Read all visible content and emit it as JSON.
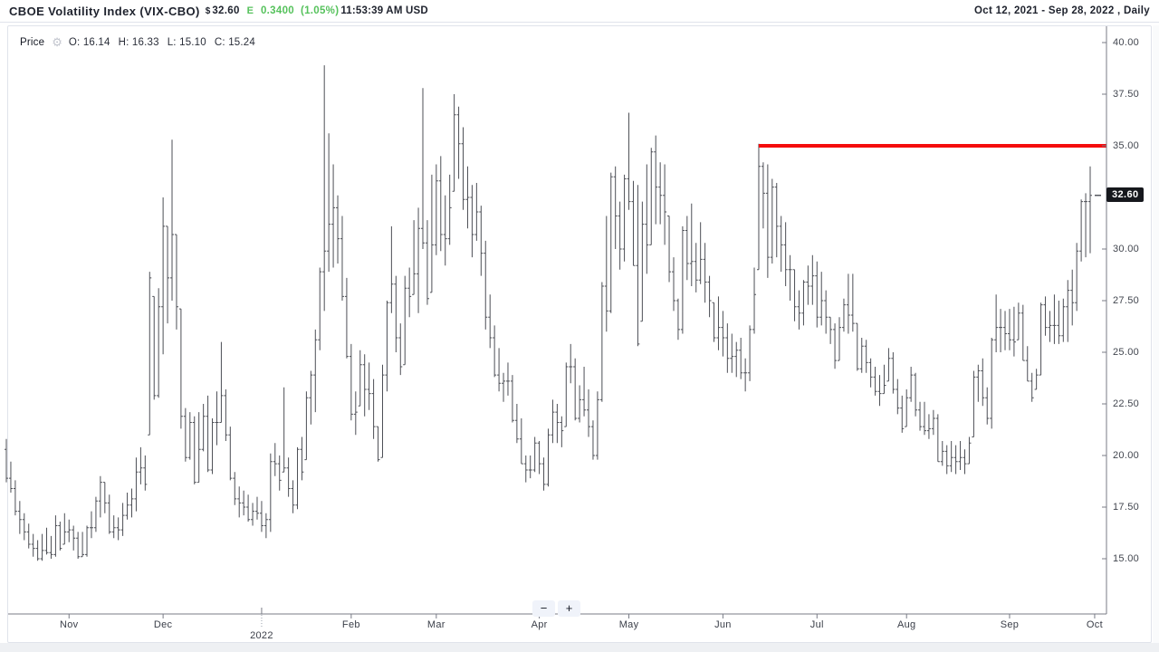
{
  "header": {
    "title": "CBOE Volatility Index (VIX-CBO)",
    "currency_symbol": "$",
    "last_price": "32.60",
    "session_flag": "E",
    "change": "0.3400",
    "change_pct": "(1.05%)",
    "time": "11:53:39 AM USD",
    "range": "Oct 12, 2021 - Sep 28, 2022 , Daily"
  },
  "legend": {
    "series": "Price",
    "gear_icon": "gear",
    "items": [
      {
        "k": "O:",
        "v": "16.14"
      },
      {
        "k": "H:",
        "v": "16.33"
      },
      {
        "k": "L:",
        "v": "15.10"
      },
      {
        "k": "C:",
        "v": "15.24"
      }
    ]
  },
  "toolbar": {
    "zoom_out": "−",
    "zoom_in": "+"
  },
  "price_tag": "32.60",
  "colors": {
    "bar": "#4d4f56",
    "red_line": "#f50d0d",
    "green": "#56c25c",
    "axis": "#787b86",
    "price_tag_bg": "#16181d"
  },
  "chart_data": {
    "type": "bar",
    "subtype": "ohlc-bars-daily",
    "title": "CBOE Volatility Index (VIX-CBO)",
    "date_range": "Oct 12, 2021 - Sep 28, 2022",
    "interval": "Daily",
    "ylim": [
      13.9,
      41.0
    ],
    "grid": false,
    "y_ticks": [
      {
        "label": "40.00",
        "value": 40.0
      },
      {
        "label": "37.50",
        "value": 37.5
      },
      {
        "label": "35.00",
        "value": 35.0
      },
      {
        "label": "30.00",
        "value": 30.0
      },
      {
        "label": "27.50",
        "value": 27.5
      },
      {
        "label": "25.00",
        "value": 25.0
      },
      {
        "label": "22.50",
        "value": 22.5
      },
      {
        "label": "20.00",
        "value": 20.0
      },
      {
        "label": "17.50",
        "value": 17.5
      },
      {
        "label": "15.00",
        "value": 15.0
      }
    ],
    "x_ticks": [
      {
        "label": "Nov",
        "index": 14,
        "year": false
      },
      {
        "label": "Dec",
        "index": 35,
        "year": false
      },
      {
        "label": "2022",
        "index": 57,
        "year": true
      },
      {
        "label": "Feb",
        "index": 77,
        "year": false
      },
      {
        "label": "Mar",
        "index": 96,
        "year": false
      },
      {
        "label": "Apr",
        "index": 119,
        "year": false
      },
      {
        "label": "May",
        "index": 139,
        "year": false
      },
      {
        "label": "Jun",
        "index": 160,
        "year": false
      },
      {
        "label": "Jul",
        "index": 181,
        "year": false
      },
      {
        "label": "Aug",
        "index": 201,
        "year": false
      },
      {
        "label": "Sep",
        "index": 224,
        "year": false
      },
      {
        "label": "Oct",
        "index": 243,
        "year": false
      }
    ],
    "horizontal_line": {
      "price": 35.0,
      "start_index": 168,
      "color": "#f50d0d"
    },
    "current_price": 32.6,
    "first_open": 20.3,
    "bars_hlc": [
      [
        20.8,
        18.7,
        18.9
      ],
      [
        19.7,
        18.2,
        18.4
      ],
      [
        18.8,
        17.1,
        17.3
      ],
      [
        17.8,
        16.2,
        16.9
      ],
      [
        17.2,
        15.9,
        16.3
      ],
      [
        16.7,
        15.5,
        15.7
      ],
      [
        16.2,
        15.1,
        15.5
      ],
      [
        15.9,
        14.9,
        15.0
      ],
      [
        16.2,
        14.9,
        15.4
      ],
      [
        16.5,
        15.2,
        15.3
      ],
      [
        16.1,
        15.0,
        15.2
      ],
      [
        17.1,
        15.1,
        16.6
      ],
      [
        16.8,
        15.4,
        15.5
      ],
      [
        17.2,
        15.7,
        16.3
      ],
      [
        16.9,
        15.8,
        16.4
      ],
      [
        16.6,
        15.4,
        16.0
      ],
      [
        16.3,
        15.0,
        15.1
      ],
      [
        16.3,
        15.1,
        15.2
      ],
      [
        16.6,
        15.1,
        16.5
      ],
      [
        17.3,
        16.0,
        16.5
      ],
      [
        18.0,
        16.3,
        17.8
      ],
      [
        19.0,
        17.0,
        18.7
      ],
      [
        18.7,
        17.2,
        17.7
      ],
      [
        18.1,
        16.2,
        16.3
      ],
      [
        17.1,
        16.0,
        16.5
      ],
      [
        17.0,
        15.9,
        16.4
      ],
      [
        17.7,
        16.1,
        17.1
      ],
      [
        18.2,
        16.9,
        17.6
      ],
      [
        18.4,
        17.0,
        17.9
      ],
      [
        19.9,
        17.3,
        19.2
      ],
      [
        20.4,
        18.6,
        19.4
      ],
      [
        20.0,
        18.3,
        18.6
      ],
      [
        28.9,
        21.0,
        28.6
      ],
      [
        27.7,
        22.7,
        22.9
      ],
      [
        28.1,
        22.8,
        27.2
      ],
      [
        32.5,
        24.9,
        31.1
      ],
      [
        31.1,
        26.4,
        28.6
      ],
      [
        35.3,
        27.5,
        30.7
      ],
      [
        30.7,
        26.1,
        27.2
      ],
      [
        27.1,
        21.3,
        21.9
      ],
      [
        22.3,
        19.7,
        19.9
      ],
      [
        22.1,
        19.8,
        21.6
      ],
      [
        21.9,
        18.6,
        18.7
      ],
      [
        22.1,
        18.7,
        20.3
      ],
      [
        22.5,
        20.2,
        21.9
      ],
      [
        22.9,
        19.2,
        19.3
      ],
      [
        21.8,
        19.1,
        21.6
      ],
      [
        23.1,
        20.5,
        21.6
      ],
      [
        25.5,
        21.6,
        22.9
      ],
      [
        23.2,
        20.7,
        21.0
      ],
      [
        21.4,
        18.8,
        18.9
      ],
      [
        19.2,
        17.6,
        17.9
      ],
      [
        18.5,
        17.0,
        17.7
      ],
      [
        18.3,
        17.1,
        17.5
      ],
      [
        18.1,
        16.8,
        16.9
      ],
      [
        17.7,
        16.6,
        17.3
      ],
      [
        18.0,
        16.9,
        17.2
      ],
      [
        17.8,
        16.3,
        16.6
      ],
      [
        17.2,
        16.0,
        16.9
      ],
      [
        20.1,
        16.3,
        19.7
      ],
      [
        20.6,
        19.0,
        19.6
      ],
      [
        20.0,
        18.3,
        18.8
      ],
      [
        23.3,
        19.2,
        19.4
      ],
      [
        19.9,
        18.0,
        18.4
      ],
      [
        18.8,
        17.2,
        17.6
      ],
      [
        20.4,
        17.4,
        20.3
      ],
      [
        20.9,
        18.8,
        19.2
      ],
      [
        23.1,
        19.8,
        22.8
      ],
      [
        24.1,
        21.5,
        23.9
      ],
      [
        26.1,
        22.1,
        25.6
      ],
      [
        29.1,
        25.1,
        28.9
      ],
      [
        38.9,
        27.0,
        29.9
      ],
      [
        35.6,
        28.9,
        31.2
      ],
      [
        34.1,
        29.1,
        32.0
      ],
      [
        32.6,
        29.3,
        30.5
      ],
      [
        31.6,
        27.5,
        27.7
      ],
      [
        28.6,
        24.7,
        24.8
      ],
      [
        25.4,
        21.7,
        22.0
      ],
      [
        23.1,
        21.0,
        22.1
      ],
      [
        25.1,
        22.4,
        24.4
      ],
      [
        24.9,
        21.9,
        23.2
      ],
      [
        24.5,
        22.2,
        23.0
      ],
      [
        23.7,
        20.8,
        21.4
      ],
      [
        21.4,
        19.7,
        19.8
      ],
      [
        24.4,
        19.9,
        23.9
      ],
      [
        27.5,
        23.1,
        27.4
      ],
      [
        31.1,
        26.9,
        28.3
      ],
      [
        28.7,
        25.0,
        25.7
      ],
      [
        26.4,
        23.9,
        24.3
      ],
      [
        28.7,
        24.4,
        28.1
      ],
      [
        29.1,
        26.7,
        27.7
      ],
      [
        31.4,
        27.8,
        28.8
      ],
      [
        32.0,
        26.9,
        31.0
      ],
      [
        37.8,
        30.0,
        30.3
      ],
      [
        31.4,
        27.3,
        27.6
      ],
      [
        33.6,
        27.9,
        30.2
      ],
      [
        34.1,
        29.7,
        33.3
      ],
      [
        34.5,
        29.9,
        30.7
      ],
      [
        32.6,
        29.2,
        30.5
      ],
      [
        33.6,
        30.2,
        32.0
      ],
      [
        37.5,
        32.8,
        36.5
      ],
      [
        36.9,
        33.4,
        35.1
      ],
      [
        35.9,
        31.9,
        32.4
      ],
      [
        34.0,
        31.0,
        32.5
      ],
      [
        33.1,
        29.6,
        30.7
      ],
      [
        33.2,
        30.4,
        31.8
      ],
      [
        32.1,
        28.7,
        29.8
      ],
      [
        30.4,
        26.1,
        26.7
      ],
      [
        27.8,
        25.2,
        25.7
      ],
      [
        26.3,
        23.8,
        23.9
      ],
      [
        25.2,
        23.1,
        23.5
      ],
      [
        24.0,
        22.6,
        23.6
      ],
      [
        24.5,
        22.9,
        23.6
      ],
      [
        23.9,
        21.6,
        21.7
      ],
      [
        22.5,
        20.6,
        20.8
      ],
      [
        21.8,
        19.6,
        19.6
      ],
      [
        20.0,
        18.7,
        19.3
      ],
      [
        20.0,
        18.9,
        19.3
      ],
      [
        20.9,
        19.2,
        20.6
      ],
      [
        20.7,
        19.1,
        19.6
      ],
      [
        19.9,
        18.3,
        18.6
      ],
      [
        21.3,
        18.5,
        21.0
      ],
      [
        22.7,
        20.6,
        22.1
      ],
      [
        22.5,
        20.6,
        21.6
      ],
      [
        21.9,
        20.4,
        21.2
      ],
      [
        24.5,
        21.4,
        24.3
      ],
      [
        25.4,
        23.5,
        24.3
      ],
      [
        24.7,
        21.7,
        21.8
      ],
      [
        23.4,
        21.6,
        22.7
      ],
      [
        24.3,
        21.9,
        22.2
      ],
      [
        23.2,
        20.9,
        21.4
      ],
      [
        21.7,
        19.8,
        20.0
      ],
      [
        23.1,
        19.8,
        22.7
      ],
      [
        28.4,
        22.6,
        28.2
      ],
      [
        31.6,
        26.0,
        27.0
      ],
      [
        33.7,
        26.9,
        33.5
      ],
      [
        34.0,
        30.0,
        31.6
      ],
      [
        32.3,
        29.0,
        30.0
      ],
      [
        33.6,
        29.4,
        33.4
      ],
      [
        36.6,
        31.9,
        32.3
      ],
      [
        33.3,
        29.2,
        29.2
      ],
      [
        33.1,
        25.3,
        25.4
      ],
      [
        32.3,
        26.5,
        31.2
      ],
      [
        34.1,
        28.8,
        30.2
      ],
      [
        34.9,
        30.2,
        34.7
      ],
      [
        35.5,
        31.2,
        33.0
      ],
      [
        34.2,
        31.2,
        32.6
      ],
      [
        34.1,
        30.2,
        31.8
      ],
      [
        31.6,
        28.4,
        28.9
      ],
      [
        29.6,
        27.0,
        27.5
      ],
      [
        27.6,
        25.6,
        26.1
      ],
      [
        31.1,
        25.9,
        30.9
      ],
      [
        31.6,
        28.5,
        29.3
      ],
      [
        32.2,
        28.2,
        29.4
      ],
      [
        30.3,
        27.9,
        28.5
      ],
      [
        31.3,
        28.3,
        29.5
      ],
      [
        30.3,
        27.4,
        28.4
      ],
      [
        28.7,
        26.7,
        27.5
      ],
      [
        27.4,
        25.5,
        25.7
      ],
      [
        27.7,
        25.1,
        26.2
      ],
      [
        27.0,
        24.8,
        25.7
      ],
      [
        26.4,
        24.0,
        24.7
      ],
      [
        25.9,
        24.0,
        24.8
      ],
      [
        25.5,
        23.8,
        25.1
      ],
      [
        25.7,
        23.7,
        24.0
      ],
      [
        24.7,
        23.1,
        24.0
      ],
      [
        26.3,
        23.6,
        26.1
      ],
      [
        29.1,
        25.9,
        27.8
      ],
      [
        35.1,
        29.0,
        34.0
      ],
      [
        34.2,
        31.0,
        32.7
      ],
      [
        34.1,
        28.6,
        29.6
      ],
      [
        33.4,
        29.3,
        33.0
      ],
      [
        33.2,
        29.6,
        31.1
      ],
      [
        31.6,
        28.9,
        30.2
      ],
      [
        31.3,
        28.2,
        29.0
      ],
      [
        29.7,
        27.5,
        29.0
      ],
      [
        29.0,
        26.5,
        27.2
      ],
      [
        28.0,
        26.1,
        26.9
      ],
      [
        28.5,
        26.3,
        28.4
      ],
      [
        29.2,
        27.3,
        28.2
      ],
      [
        29.7,
        27.3,
        28.7
      ],
      [
        29.4,
        26.2,
        26.7
      ],
      [
        28.9,
        26.3,
        27.5
      ],
      [
        28.0,
        25.9,
        26.7
      ],
      [
        26.7,
        25.4,
        26.1
      ],
      [
        26.4,
        24.2,
        24.6
      ],
      [
        26.7,
        24.6,
        26.2
      ],
      [
        27.6,
        26.0,
        27.3
      ],
      [
        28.8,
        25.9,
        26.8
      ],
      [
        28.8,
        26.0,
        26.4
      ],
      [
        26.4,
        24.1,
        24.2
      ],
      [
        25.7,
        24.0,
        25.3
      ],
      [
        25.6,
        24.0,
        24.5
      ],
      [
        24.7,
        23.3,
        23.8
      ],
      [
        24.3,
        22.9,
        23.1
      ],
      [
        23.9,
        22.4,
        23.0
      ],
      [
        24.4,
        23.0,
        23.4
      ],
      [
        25.2,
        23.6,
        24.7
      ],
      [
        25.0,
        23.0,
        23.2
      ],
      [
        23.7,
        22.0,
        22.3
      ],
      [
        22.9,
        21.1,
        21.3
      ],
      [
        23.2,
        21.4,
        22.8
      ],
      [
        24.3,
        22.6,
        23.9
      ],
      [
        24.0,
        21.9,
        22.2
      ],
      [
        22.6,
        21.2,
        21.4
      ],
      [
        22.6,
        21.0,
        21.2
      ],
      [
        22.0,
        20.8,
        21.3
      ],
      [
        22.2,
        21.0,
        21.8
      ],
      [
        22.0,
        19.7,
        19.7
      ],
      [
        20.7,
        19.5,
        20.2
      ],
      [
        20.5,
        19.1,
        19.5
      ],
      [
        20.7,
        19.2,
        19.9
      ],
      [
        20.5,
        19.1,
        19.7
      ],
      [
        20.7,
        19.3,
        19.9
      ],
      [
        20.3,
        19.1,
        19.6
      ],
      [
        20.9,
        19.6,
        20.6
      ],
      [
        24.1,
        20.9,
        23.8
      ],
      [
        24.4,
        22.6,
        24.1
      ],
      [
        24.7,
        22.4,
        22.8
      ],
      [
        23.3,
        21.5,
        21.8
      ],
      [
        25.7,
        21.3,
        25.6
      ],
      [
        27.8,
        25.0,
        26.2
      ],
      [
        27.1,
        25.0,
        26.2
      ],
      [
        27.0,
        25.1,
        25.9
      ],
      [
        27.1,
        25.1,
        25.6
      ],
      [
        27.2,
        24.8,
        25.5
      ],
      [
        27.4,
        25.6,
        26.9
      ],
      [
        27.3,
        24.6,
        24.6
      ],
      [
        25.3,
        23.6,
        23.6
      ],
      [
        24.0,
        22.6,
        22.8
      ],
      [
        24.2,
        23.2,
        23.9
      ],
      [
        27.4,
        23.9,
        27.3
      ],
      [
        27.7,
        25.8,
        26.2
      ],
      [
        27.0,
        25.5,
        26.3
      ],
      [
        27.8,
        25.4,
        26.3
      ],
      [
        27.5,
        25.4,
        25.8
      ],
      [
        27.6,
        25.5,
        27.2
      ],
      [
        28.5,
        25.5,
        28.0
      ],
      [
        29.0,
        26.3,
        27.4
      ],
      [
        30.3,
        27.0,
        29.9
      ],
      [
        32.4,
        29.4,
        32.3
      ],
      [
        32.7,
        29.6,
        32.3
      ],
      [
        34.0,
        29.8,
        32.6
      ]
    ]
  }
}
